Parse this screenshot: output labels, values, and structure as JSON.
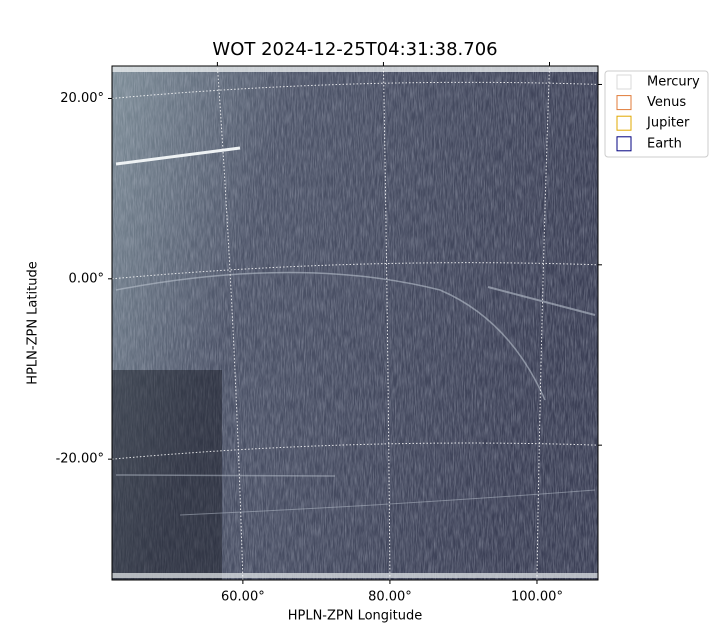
{
  "chart_data": {
    "type": "image",
    "title": "WOT 2024-12-25T04:31:38.706",
    "xlabel": "HPLN-ZPN Longitude",
    "ylabel": "HPLN-ZPN Latitude",
    "xlim": [
      42.2,
      108.3
    ],
    "ylim": [
      -33.4,
      23.6
    ],
    "xticks": [
      {
        "value": 60,
        "label": "60.00°"
      },
      {
        "value": 80,
        "label": "80.00°"
      },
      {
        "value": 100,
        "label": "100.00°"
      }
    ],
    "yticks": [
      {
        "value": 20,
        "label": "20.00°"
      },
      {
        "value": 0,
        "label": "0.00°"
      },
      {
        "value": -20,
        "label": "-20.00°"
      }
    ],
    "grid": true,
    "legend_position": "outside right",
    "legend": [
      {
        "name": "Mercury",
        "color": "#d9d9d9"
      },
      {
        "name": "Venus",
        "color": "#e07b39"
      },
      {
        "name": "Jupiter",
        "color": "#e0a800"
      },
      {
        "name": "Earth",
        "color": "#000080"
      }
    ]
  }
}
